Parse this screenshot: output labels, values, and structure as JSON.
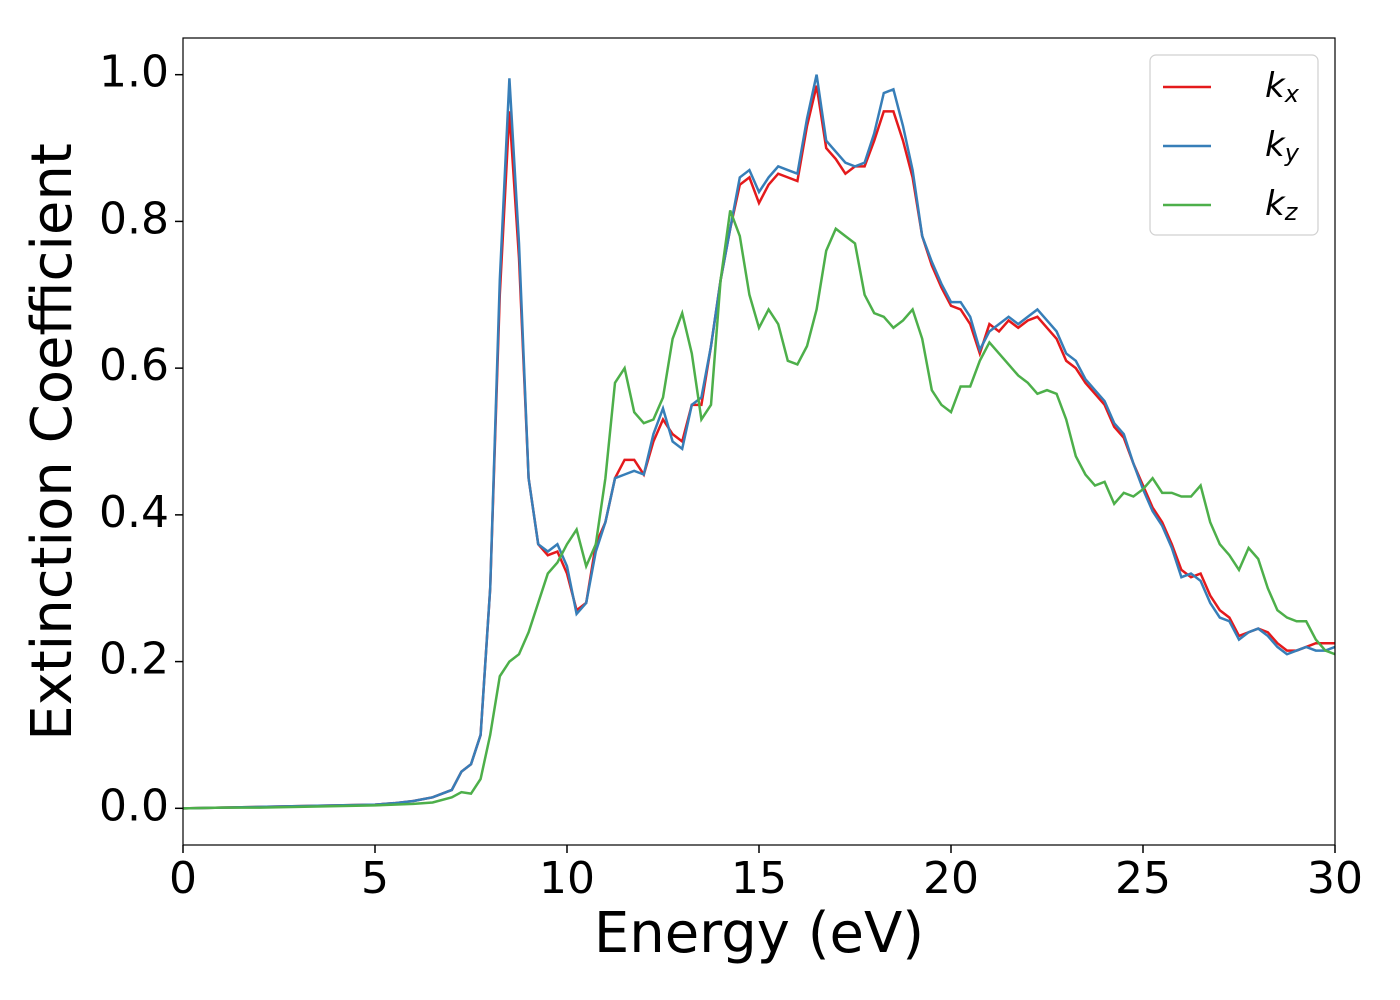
{
  "chart_data": {
    "type": "line",
    "xlabel": "Energy (eV)",
    "ylabel": "Extinction Coefficient",
    "x": [
      0,
      1,
      2,
      3,
      4,
      5,
      5.5,
      6,
      6.5,
      7,
      7.25,
      7.5,
      7.75,
      8,
      8.25,
      8.5,
      8.75,
      9,
      9.25,
      9.5,
      9.75,
      10,
      10.25,
      10.5,
      10.75,
      11,
      11.25,
      11.5,
      11.75,
      12,
      12.25,
      12.5,
      12.75,
      13,
      13.25,
      13.5,
      13.75,
      14,
      14.25,
      14.5,
      14.75,
      15,
      15.25,
      15.5,
      15.75,
      16,
      16.25,
      16.5,
      16.75,
      17,
      17.25,
      17.5,
      17.75,
      18,
      18.25,
      18.5,
      18.75,
      19,
      19.25,
      19.5,
      19.75,
      20,
      20.25,
      20.5,
      20.75,
      21,
      21.25,
      21.5,
      21.75,
      22,
      22.25,
      22.5,
      22.75,
      23,
      23.25,
      23.5,
      23.75,
      24,
      24.25,
      24.5,
      24.75,
      25,
      25.25,
      25.5,
      25.75,
      26,
      26.25,
      26.5,
      26.75,
      27,
      27.25,
      27.5,
      27.75,
      28,
      28.25,
      28.5,
      28.75,
      29,
      29.25,
      29.5,
      29.75,
      30
    ],
    "series": [
      {
        "name": "kx",
        "color": "#e41a1c",
        "values": [
          0,
          0.001,
          0.002,
          0.003,
          0.004,
          0.005,
          0.007,
          0.01,
          0.015,
          0.025,
          0.05,
          0.06,
          0.1,
          0.3,
          0.7,
          0.95,
          0.75,
          0.45,
          0.36,
          0.345,
          0.35,
          0.32,
          0.27,
          0.28,
          0.36,
          0.39,
          0.45,
          0.475,
          0.475,
          0.455,
          0.5,
          0.53,
          0.51,
          0.5,
          0.55,
          0.55,
          0.63,
          0.72,
          0.79,
          0.85,
          0.86,
          0.825,
          0.85,
          0.865,
          0.86,
          0.855,
          0.93,
          0.985,
          0.9,
          0.885,
          0.865,
          0.875,
          0.875,
          0.91,
          0.95,
          0.95,
          0.91,
          0.86,
          0.78,
          0.74,
          0.71,
          0.685,
          0.68,
          0.66,
          0.62,
          0.66,
          0.65,
          0.665,
          0.655,
          0.665,
          0.67,
          0.655,
          0.64,
          0.61,
          0.6,
          0.58,
          0.565,
          0.55,
          0.52,
          0.505,
          0.47,
          0.44,
          0.41,
          0.39,
          0.36,
          0.325,
          0.315,
          0.32,
          0.29,
          0.27,
          0.26,
          0.235,
          0.24,
          0.245,
          0.24,
          0.225,
          0.215,
          0.215,
          0.22,
          0.225,
          0.225,
          0.225
        ]
      },
      {
        "name": "ky",
        "color": "#377eb8",
        "values": [
          0,
          0.001,
          0.002,
          0.003,
          0.004,
          0.005,
          0.007,
          0.01,
          0.015,
          0.025,
          0.05,
          0.06,
          0.1,
          0.3,
          0.72,
          0.995,
          0.77,
          0.45,
          0.36,
          0.35,
          0.36,
          0.33,
          0.265,
          0.28,
          0.35,
          0.39,
          0.45,
          0.455,
          0.46,
          0.455,
          0.51,
          0.545,
          0.5,
          0.49,
          0.55,
          0.56,
          0.63,
          0.72,
          0.79,
          0.86,
          0.87,
          0.84,
          0.86,
          0.875,
          0.87,
          0.865,
          0.94,
          1.0,
          0.91,
          0.895,
          0.88,
          0.875,
          0.88,
          0.92,
          0.975,
          0.98,
          0.93,
          0.87,
          0.78,
          0.745,
          0.715,
          0.69,
          0.69,
          0.67,
          0.625,
          0.65,
          0.66,
          0.67,
          0.66,
          0.67,
          0.68,
          0.665,
          0.65,
          0.62,
          0.61,
          0.585,
          0.57,
          0.555,
          0.525,
          0.51,
          0.47,
          0.435,
          0.405,
          0.385,
          0.355,
          0.315,
          0.32,
          0.31,
          0.28,
          0.26,
          0.255,
          0.23,
          0.24,
          0.245,
          0.235,
          0.22,
          0.21,
          0.215,
          0.22,
          0.215,
          0.215,
          0.22
        ]
      },
      {
        "name": "kz",
        "color": "#4daf4a",
        "values": [
          0,
          0.001,
          0.001,
          0.002,
          0.003,
          0.004,
          0.005,
          0.006,
          0.008,
          0.015,
          0.022,
          0.02,
          0.04,
          0.1,
          0.18,
          0.2,
          0.21,
          0.24,
          0.28,
          0.32,
          0.335,
          0.36,
          0.38,
          0.33,
          0.36,
          0.45,
          0.58,
          0.6,
          0.54,
          0.525,
          0.53,
          0.56,
          0.64,
          0.675,
          0.62,
          0.53,
          0.55,
          0.72,
          0.815,
          0.78,
          0.7,
          0.655,
          0.68,
          0.66,
          0.61,
          0.605,
          0.63,
          0.68,
          0.76,
          0.79,
          0.78,
          0.77,
          0.7,
          0.675,
          0.67,
          0.655,
          0.665,
          0.68,
          0.64,
          0.57,
          0.55,
          0.54,
          0.575,
          0.575,
          0.61,
          0.635,
          0.62,
          0.605,
          0.59,
          0.58,
          0.565,
          0.57,
          0.565,
          0.53,
          0.48,
          0.455,
          0.44,
          0.445,
          0.415,
          0.43,
          0.425,
          0.435,
          0.45,
          0.43,
          0.43,
          0.425,
          0.425,
          0.44,
          0.39,
          0.36,
          0.345,
          0.325,
          0.355,
          0.34,
          0.3,
          0.27,
          0.26,
          0.255,
          0.255,
          0.23,
          0.215,
          0.21
        ]
      }
    ],
    "xlim": [
      0,
      30
    ],
    "xticks": [
      0,
      5,
      10,
      15,
      20,
      25,
      30
    ],
    "ylim": [
      -0.05,
      1.05
    ],
    "yticks": [
      {
        "value": 0,
        "label": "0.0"
      },
      0.2,
      0.4,
      0.6,
      0.8,
      {
        "value": 1,
        "label": "1.0"
      }
    ],
    "legend": "upper right",
    "grid": false
  }
}
